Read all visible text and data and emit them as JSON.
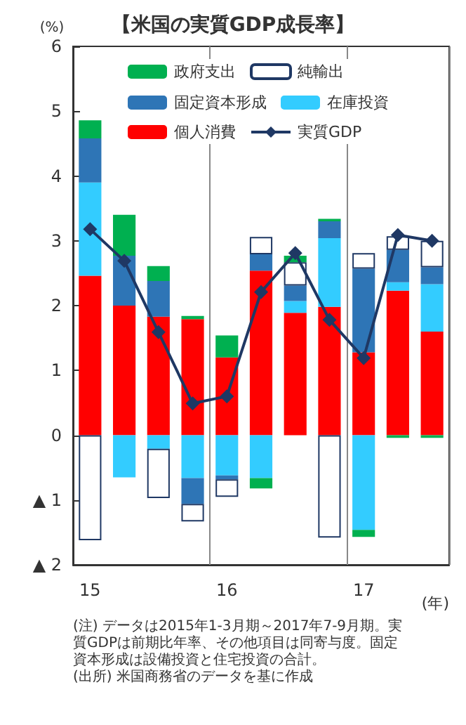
{
  "chart_data": {
    "type": "bar",
    "stacked": true,
    "title": "【米国の実質GDP成長率】",
    "ylabel": "(%)",
    "xlabel": "(年)",
    "categories": [
      "15",
      null,
      null,
      null,
      "16",
      null,
      null,
      null,
      "17",
      null,
      null
    ],
    "series": [
      {
        "name": "個人消費",
        "color": "#ff0000",
        "values": [
          2.46,
          2.0,
          1.83,
          1.79,
          1.2,
          2.54,
          1.89,
          1.98,
          1.28,
          2.23,
          1.6
        ]
      },
      {
        "name": "在庫投資",
        "color": "#33ccff",
        "values": [
          1.44,
          -0.65,
          -0.21,
          -0.66,
          -0.62,
          -0.66,
          0.18,
          1.06,
          -1.46,
          0.13,
          0.73
        ]
      },
      {
        "name": "固定資本形成",
        "color": "#2e75b6",
        "values": [
          0.68,
          0.77,
          0.55,
          -0.4,
          -0.06,
          0.25,
          0.24,
          0.26,
          1.29,
          0.5,
          0.26
        ]
      },
      {
        "name": "純輸出",
        "color": "#ffffff",
        "values": [
          -1.62,
          null,
          -0.76,
          -0.27,
          -0.27,
          0.27,
          0.36,
          -1.58,
          0.24,
          0.21,
          0.41
        ]
      },
      {
        "name": "政府支出",
        "color": "#00b050",
        "values": [
          0.28,
          0.63,
          0.23,
          0.05,
          0.34,
          -0.16,
          0.1,
          0.04,
          -0.11,
          -0.04,
          -0.04
        ]
      },
      {
        "name": "実質GDP",
        "type": "line",
        "color": "#1f3864",
        "marker": "diamond",
        "values": [
          3.18,
          2.69,
          1.59,
          0.49,
          0.6,
          2.21,
          2.81,
          1.78,
          1.19,
          3.09,
          3.0
        ]
      }
    ],
    "ylim": [
      -2,
      6
    ],
    "yticks": [
      {
        "value": -2,
        "label": "▲ 2"
      },
      {
        "value": -1,
        "label": "▲ 1"
      },
      0,
      1,
      2,
      3,
      4,
      5,
      6
    ],
    "grid": "x",
    "legend": "top",
    "annotations": [
      "(注) データは2015年1-3月期～2017年7-9月期。実質GDPは前期比年率、その他項目は同寄与度。固定資本形成は設備投資と住宅投資の合計。",
      "(出所) 米国商務省のデータを基に作成"
    ]
  }
}
